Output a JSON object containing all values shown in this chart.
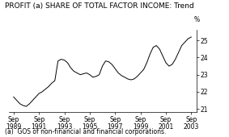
{
  "title": "PROFIT (a) SHARE OF TOTAL FACTOR INCOME: Trend",
  "footnote": "(a)  GOS of non-financial and financial corporations.",
  "ylabel": "%",
  "ylim": [
    20.8,
    25.6
  ],
  "yticks": [
    21,
    22,
    23,
    24,
    25
  ],
  "xtick_labels": [
    "Sep\n1989",
    "Sep\n1991",
    "Sep\n1993",
    "Sep\n1995",
    "Sep\n1997",
    "Sep\n1999",
    "Sep\n2001",
    "Sep\n2003"
  ],
  "x_values": [
    1989.75,
    1990.0,
    1990.25,
    1990.5,
    1990.75,
    1991.0,
    1991.25,
    1991.5,
    1991.75,
    1992.0,
    1992.25,
    1992.5,
    1992.75,
    1993.0,
    1993.25,
    1993.5,
    1993.75,
    1994.0,
    1994.25,
    1994.5,
    1994.75,
    1995.0,
    1995.25,
    1995.5,
    1995.75,
    1996.0,
    1996.25,
    1996.5,
    1996.75,
    1997.0,
    1997.25,
    1997.5,
    1997.75,
    1998.0,
    1998.25,
    1998.5,
    1998.75,
    1999.0,
    1999.25,
    1999.5,
    1999.75,
    2000.0,
    2000.25,
    2000.5,
    2000.75,
    2001.0,
    2001.25,
    2001.5,
    2001.75,
    2002.0,
    2002.25,
    2002.5,
    2002.75,
    2003.0,
    2003.25,
    2003.5,
    2003.75
  ],
  "y_values": [
    21.7,
    21.5,
    21.3,
    21.2,
    21.15,
    21.3,
    21.5,
    21.7,
    21.9,
    22.0,
    22.15,
    22.3,
    22.5,
    22.65,
    23.8,
    23.9,
    23.85,
    23.7,
    23.4,
    23.2,
    23.1,
    23.0,
    23.05,
    23.1,
    23.0,
    22.85,
    22.9,
    23.0,
    23.5,
    23.8,
    23.75,
    23.6,
    23.35,
    23.1,
    22.95,
    22.85,
    22.75,
    22.7,
    22.75,
    22.9,
    23.1,
    23.3,
    23.7,
    24.2,
    24.6,
    24.7,
    24.5,
    24.1,
    23.7,
    23.5,
    23.6,
    23.9,
    24.3,
    24.7,
    24.9,
    25.1,
    25.2
  ],
  "line_color": "#000000",
  "background_color": "#ffffff",
  "title_fontsize": 6.5,
  "footnote_fontsize": 5.5,
  "tick_fontsize": 5.5,
  "xtick_positions": [
    1989.75,
    1991.75,
    1993.75,
    1995.75,
    1997.75,
    1999.75,
    2001.75,
    2003.75
  ],
  "xlim": [
    1989.4,
    2004.2
  ]
}
